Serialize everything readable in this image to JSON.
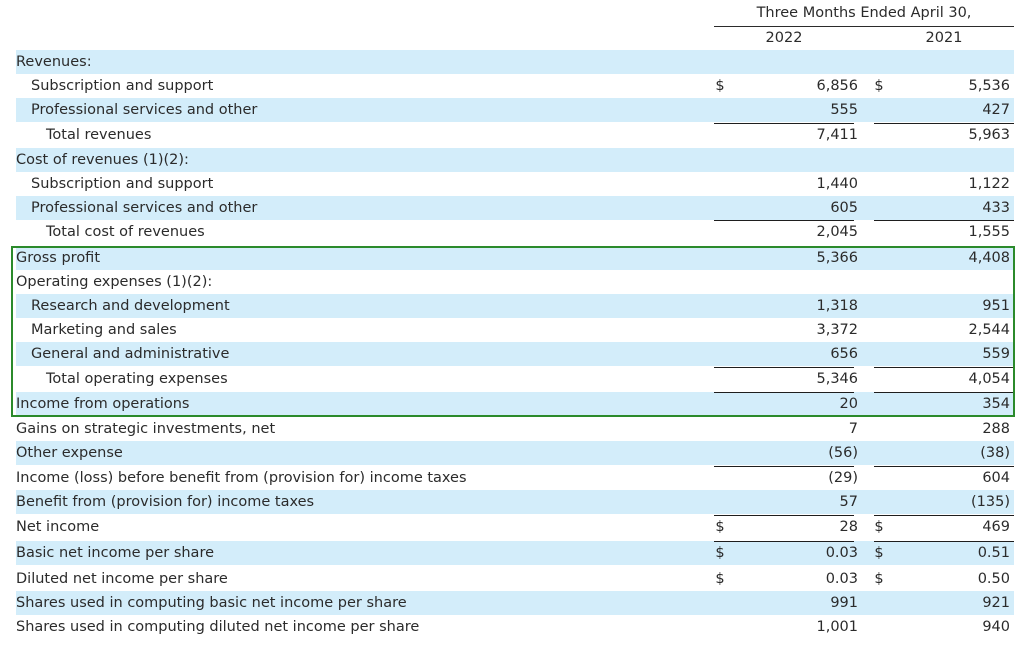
{
  "header": {
    "period": "Three Months Ended April 30,",
    "year_a": "2022",
    "year_b": "2021"
  },
  "rows": [
    {
      "label": "Revenues:",
      "indent": 0,
      "shaded": true,
      "cur_a": "",
      "a": "",
      "cur_b": "",
      "b": "",
      "border": false
    },
    {
      "label": "Subscription and support",
      "indent": 1,
      "shaded": false,
      "cur_a": "$",
      "a": "6,856",
      "cur_b": "$",
      "b": "5,536",
      "border": false
    },
    {
      "label": "Professional services and other",
      "indent": 1,
      "shaded": true,
      "cur_a": "",
      "a": "555",
      "cur_b": "",
      "b": "427",
      "border": false
    },
    {
      "label": "Total revenues",
      "indent": 2,
      "shaded": false,
      "cur_a": "",
      "a": "7,411",
      "cur_b": "",
      "b": "5,963",
      "border": true
    },
    {
      "label": "Cost of revenues (1)(2):",
      "indent": 0,
      "shaded": true,
      "cur_a": "",
      "a": "",
      "cur_b": "",
      "b": "",
      "border": false
    },
    {
      "label": "Subscription and support",
      "indent": 1,
      "shaded": false,
      "cur_a": "",
      "a": "1,440",
      "cur_b": "",
      "b": "1,122",
      "border": false
    },
    {
      "label": "Professional services and other",
      "indent": 1,
      "shaded": true,
      "cur_a": "",
      "a": "605",
      "cur_b": "",
      "b": "433",
      "border": false
    },
    {
      "label": "Total cost of revenues",
      "indent": 2,
      "shaded": false,
      "cur_a": "",
      "a": "2,045",
      "cur_b": "",
      "b": "1,555",
      "border": true
    },
    {
      "label": "Gross profit",
      "indent": 0,
      "shaded": true,
      "cur_a": "",
      "a": "5,366",
      "cur_b": "",
      "b": "4,408",
      "border": false
    },
    {
      "label": "Operating expenses (1)(2):",
      "indent": 0,
      "shaded": false,
      "cur_a": "",
      "a": "",
      "cur_b": "",
      "b": "",
      "border": false
    },
    {
      "label": "Research and development",
      "indent": 1,
      "shaded": true,
      "cur_a": "",
      "a": "1,318",
      "cur_b": "",
      "b": "951",
      "border": false
    },
    {
      "label": "Marketing and sales",
      "indent": 1,
      "shaded": false,
      "cur_a": "",
      "a": "3,372",
      "cur_b": "",
      "b": "2,544",
      "border": false
    },
    {
      "label": "General and administrative",
      "indent": 1,
      "shaded": true,
      "cur_a": "",
      "a": "656",
      "cur_b": "",
      "b": "559",
      "border": false
    },
    {
      "label": "Total operating expenses",
      "indent": 2,
      "shaded": false,
      "cur_a": "",
      "a": "5,346",
      "cur_b": "",
      "b": "4,054",
      "border": true
    },
    {
      "label": "Income from operations",
      "indent": 0,
      "shaded": true,
      "cur_a": "",
      "a": "20",
      "cur_b": "",
      "b": "354",
      "border": true
    },
    {
      "label": "Gains on strategic investments, net",
      "indent": 0,
      "shaded": false,
      "cur_a": "",
      "a": "7",
      "cur_b": "",
      "b": "288",
      "border": false
    },
    {
      "label": "Other expense",
      "indent": 0,
      "shaded": true,
      "cur_a": "",
      "a": "(56)",
      "cur_b": "",
      "b": "(38)",
      "border": false
    },
    {
      "label": "Income (loss) before benefit from (provision for) income taxes",
      "indent": 0,
      "shaded": false,
      "cur_a": "",
      "a": "(29)",
      "cur_b": "",
      "b": "604",
      "border": true
    },
    {
      "label": "Benefit from (provision for) income taxes",
      "indent": 0,
      "shaded": true,
      "cur_a": "",
      "a": "57",
      "cur_b": "",
      "b": "(135)",
      "border": false
    },
    {
      "label": "Net income",
      "indent": 0,
      "shaded": false,
      "cur_a": "$",
      "a": "28",
      "cur_b": "$",
      "b": "469",
      "border": true
    },
    {
      "label": "Basic net income per share",
      "indent": 0,
      "shaded": true,
      "cur_a": "$",
      "a": "0.03",
      "cur_b": "$",
      "b": "0.51",
      "border": true
    },
    {
      "label": "Diluted net income per share",
      "indent": 0,
      "shaded": false,
      "cur_a": "$",
      "a": "0.03",
      "cur_b": "$",
      "b": "0.50",
      "border": false
    },
    {
      "label": "Shares used in computing basic net income per share",
      "indent": 0,
      "shaded": true,
      "cur_a": "",
      "a": "991",
      "cur_b": "",
      "b": "921",
      "border": false
    },
    {
      "label": "Shares used in computing diluted net income per share",
      "indent": 0,
      "shaded": false,
      "cur_a": "",
      "a": "1,001",
      "cur_b": "",
      "b": "940",
      "border": false
    }
  ],
  "highlight": {
    "color": "#2b8a2b",
    "from_row": "Gross profit",
    "to_row": "Income from operations"
  },
  "colors": {
    "row_shade": "#d3edfa",
    "text": "#2b2b2b"
  }
}
